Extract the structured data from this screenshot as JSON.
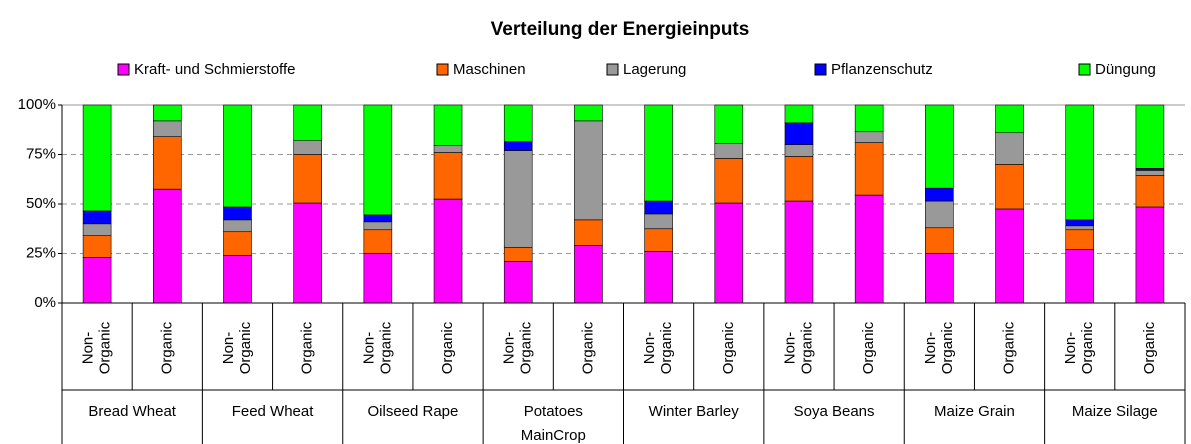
{
  "chart_data": {
    "type": "stacked_bar_100",
    "title": "Verteilung der Energieinputs",
    "category_groups": [
      {
        "name": "Bread Wheat",
        "categories": [
          "Non-Organic",
          "Organic"
        ]
      },
      {
        "name": "Feed Wheat",
        "categories": [
          "Non-Organic",
          "Organic"
        ]
      },
      {
        "name": "Oilseed Rape",
        "categories": [
          "Non-Organic",
          "Organic"
        ]
      },
      {
        "name": "Potatoes MainCrop",
        "categories": [
          "Non-Organic",
          "Organic"
        ]
      },
      {
        "name": "Winter Barley",
        "categories": [
          "Non-Organic",
          "Organic"
        ]
      },
      {
        "name": "Soya Beans",
        "categories": [
          "Non-Organic",
          "Organic"
        ]
      },
      {
        "name": "Maize Grain",
        "categories": [
          "Non-Organic",
          "Organic"
        ]
      },
      {
        "name": "Maize Silage",
        "categories": [
          "Non-Organic",
          "Organic"
        ]
      }
    ],
    "series": [
      {
        "name": "Kraft- und Schmierstoffe",
        "color": "#ff00ff",
        "values": [
          23,
          57.5,
          24,
          50.5,
          25,
          52.5,
          21,
          29,
          26,
          50.5,
          51.5,
          54.5,
          25,
          47.5,
          27,
          48.5
        ]
      },
      {
        "name": "Maschinen",
        "color": "#ff6600",
        "values": [
          11,
          26.5,
          12,
          24.5,
          12,
          23.5,
          7,
          13,
          11.5,
          22.5,
          22.5,
          26.5,
          13,
          22.5,
          10,
          16
        ]
      },
      {
        "name": "Lagerung",
        "color": "#999999",
        "values": [
          6,
          8,
          6,
          7,
          4,
          3.5,
          49,
          50,
          7.5,
          7.5,
          6,
          5.5,
          13.5,
          16,
          2,
          2.5
        ]
      },
      {
        "name": "Pflanzenschutz",
        "color": "#0000ff",
        "values": [
          6.5,
          0,
          6.5,
          0,
          3.5,
          0,
          4.5,
          0,
          6.5,
          0,
          11,
          0,
          6.5,
          0,
          3,
          1
        ]
      },
      {
        "name": "Düngung",
        "color": "#00ff00",
        "values": [
          53.5,
          8,
          51.5,
          18,
          55.5,
          20.5,
          18.5,
          8,
          48.5,
          19.5,
          9,
          13.5,
          42,
          14,
          58,
          32
        ]
      }
    ],
    "ylim": [
      0,
      100
    ],
    "yticks": [
      {
        "value": 0,
        "label": "0%"
      },
      {
        "value": 25,
        "label": "25%"
      },
      {
        "value": 50,
        "label": "50%"
      },
      {
        "value": 75,
        "label": "75%"
      },
      {
        "value": 100,
        "label": "100%"
      }
    ],
    "grid": true,
    "legend": "top"
  }
}
